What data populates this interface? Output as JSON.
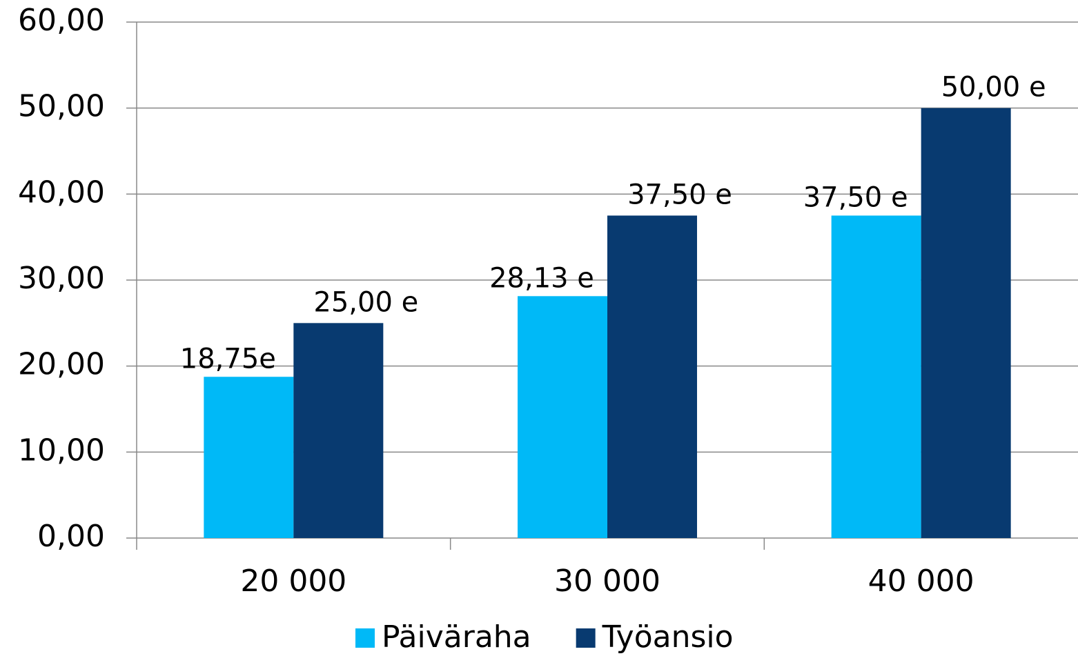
{
  "chart_data": {
    "type": "bar",
    "categories": [
      "20 000",
      "30 000",
      "40 000"
    ],
    "series": [
      {
        "name": "Päiväraha",
        "color": "#00b9f7",
        "values": [
          18.75,
          28.13,
          37.5
        ],
        "value_labels": [
          "18,75e",
          "28,13 e",
          "37,50 e"
        ]
      },
      {
        "name": "Työansio",
        "color": "#083a70",
        "values": [
          25,
          37.5,
          50
        ],
        "value_labels": [
          "25,00 e",
          "37,50 e",
          "50,00 e"
        ]
      }
    ],
    "ylim": [
      0,
      60
    ],
    "yticks": [
      {
        "value": 0,
        "label": "0,00"
      },
      {
        "value": 10,
        "label": "10,00"
      },
      {
        "value": 20,
        "label": "20,00"
      },
      {
        "value": 30,
        "label": "30,00"
      },
      {
        "value": 40,
        "label": "40,00"
      },
      {
        "value": 50,
        "label": "50,00"
      },
      {
        "value": 60,
        "label": "60,00"
      }
    ],
    "grid": true
  }
}
